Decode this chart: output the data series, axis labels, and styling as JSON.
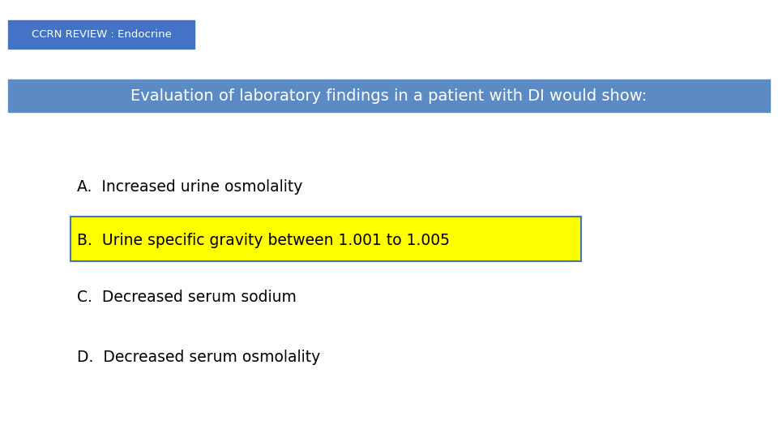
{
  "background_color": "#ffffff",
  "header_tag_text": "CCRN REVIEW : Endocrine",
  "header_tag_bg": "#4472c4",
  "header_tag_text_color": "#ffffff",
  "header_tag_fontsize": 9.5,
  "title_text": "Evaluation of laboratory findings in a patient with DI would show:",
  "title_bg": "#5b8ac5",
  "title_text_color": "#ffffff",
  "title_fontsize": 14,
  "options": [
    {
      "label": "A.  ",
      "text": "Increased urine osmolality",
      "highlight": false
    },
    {
      "label": "B.  ",
      "text": "Urine specific gravity between 1.001 to 1.005",
      "highlight": true
    },
    {
      "label": "C.  ",
      "text": "Decreased serum sodium",
      "highlight": false
    },
    {
      "label": "D.  ",
      "text": "Decreased serum osmolality",
      "highlight": false
    }
  ],
  "option_fontsize": 13.5,
  "option_text_color": "#000000",
  "highlight_bg": "#ffff00",
  "highlight_border": "#4472c4",
  "fig_width": 9.6,
  "fig_height": 5.4,
  "dpi": 100
}
